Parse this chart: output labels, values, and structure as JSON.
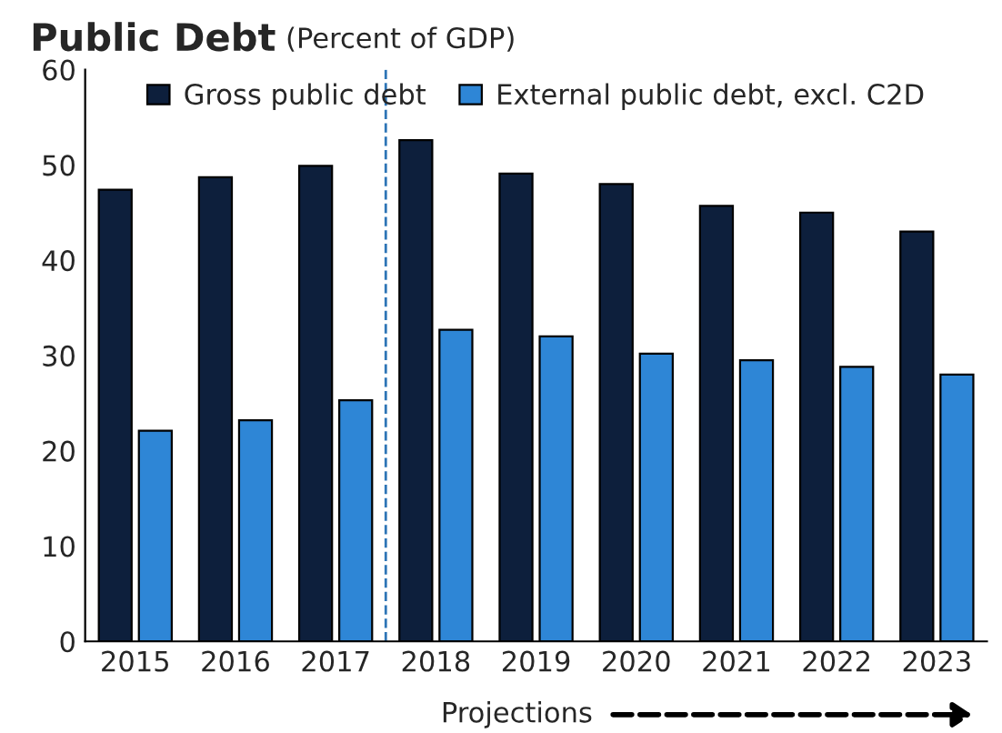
{
  "chart_data": {
    "type": "bar",
    "title": "Public Debt",
    "subtitle": "(Percent of GDP)",
    "x": [
      2015,
      2016,
      2017,
      2018,
      2019,
      2020,
      2021,
      2022,
      2023
    ],
    "xlim": [
      2014.5,
      2023.5
    ],
    "xticks": [
      2015,
      2016,
      2017,
      2018,
      2019,
      2020,
      2021,
      2022,
      2023
    ],
    "ylim": [
      0,
      60
    ],
    "yticks": [
      0,
      10,
      20,
      30,
      40,
      50,
      60
    ],
    "series": [
      {
        "name": "Gross public debt",
        "color": "#0d1f3c",
        "values": [
          47.4,
          48.7,
          49.9,
          52.6,
          49.1,
          48.0,
          45.7,
          45.0,
          43.0
        ]
      },
      {
        "name": "External public debt, excl. C2D",
        "color": "#2e86d6",
        "values": [
          22.1,
          23.2,
          25.3,
          32.7,
          32.0,
          30.2,
          29.5,
          28.8,
          28.0
        ]
      }
    ],
    "ref_lines": [
      {
        "axis": "x",
        "value": 2017.5,
        "color": "#2e75b6",
        "line_style": "dashed"
      }
    ],
    "annotations": [
      "Projections"
    ],
    "grid": false,
    "legend": "top"
  }
}
